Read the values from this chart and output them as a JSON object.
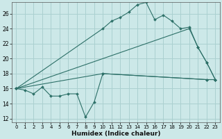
{
  "xlabel": "Humidex (Indice chaleur)",
  "bg_color": "#cce8e8",
  "grid_color": "#aad0d0",
  "line_color": "#2d7068",
  "xlim": [
    -0.5,
    23.5
  ],
  "ylim": [
    11.5,
    27.5
  ],
  "xticks": [
    0,
    1,
    2,
    3,
    4,
    5,
    6,
    7,
    8,
    9,
    10,
    11,
    12,
    13,
    14,
    15,
    16,
    17,
    18,
    19,
    20,
    21,
    22,
    23
  ],
  "yticks": [
    12,
    14,
    16,
    18,
    20,
    22,
    24,
    26
  ],
  "series": [
    {
      "x": [
        0,
        1,
        2,
        3,
        4,
        5,
        6,
        7,
        8,
        9,
        10,
        22,
        23
      ],
      "y": [
        16.0,
        15.8,
        15.3,
        16.2,
        15.0,
        15.0,
        15.3,
        15.3,
        12.2,
        14.2,
        18.0,
        17.2,
        17.2
      ]
    },
    {
      "x": [
        0,
        10,
        11,
        12,
        13,
        14,
        15,
        16,
        17,
        18,
        19,
        20,
        21,
        22,
        23
      ],
      "y": [
        16.0,
        24.0,
        25.0,
        25.5,
        26.2,
        27.2,
        27.5,
        25.2,
        25.8,
        25.0,
        24.0,
        24.2,
        21.5,
        19.5,
        17.2
      ]
    },
    {
      "x": [
        0,
        20,
        21,
        22,
        23
      ],
      "y": [
        16.0,
        24.0,
        21.5,
        19.5,
        17.2
      ]
    },
    {
      "x": [
        0,
        10,
        22,
        23
      ],
      "y": [
        16.0,
        18.0,
        17.2,
        17.2
      ]
    }
  ]
}
